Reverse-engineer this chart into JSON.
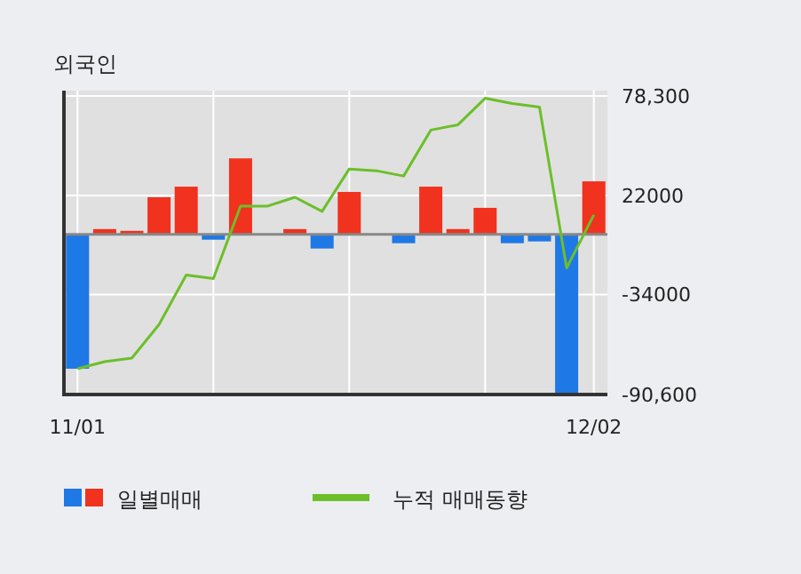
{
  "chart_data": {
    "type": "bar",
    "title": "외국인",
    "categories": [
      "11/01",
      null,
      null,
      null,
      null,
      null,
      null,
      null,
      null,
      null,
      null,
      null,
      null,
      null,
      null,
      null,
      null,
      null,
      null,
      "12/02"
    ],
    "series": [
      {
        "name": "일별매매",
        "colors": [
          "#1e78e6",
          "#f0321e",
          "#f0321e",
          "#f0321e",
          "#f0321e",
          "#1e78e6",
          "#f0321e",
          "#f0321e",
          "#f0321e",
          "#1e78e6",
          "#f0321e",
          "#f0321e",
          "#1e78e6",
          "#f0321e",
          "#f0321e",
          "#f0321e",
          "#1e78e6",
          "#1e78e6",
          "#1e78e6",
          "#f0321e"
        ],
        "values": [
          -76000,
          3000,
          2000,
          21000,
          27000,
          -3000,
          43000,
          0,
          3000,
          -8000,
          24000,
          0,
          -5000,
          27000,
          3000,
          15000,
          -5000,
          -4000,
          -90600,
          30000
        ]
      },
      {
        "name": "누적 매매동향",
        "type": "line",
        "color": "#6cbf2a",
        "values": [
          -76000,
          -72000,
          -70000,
          -51000,
          -23000,
          -25000,
          16000,
          16000,
          21000,
          13000,
          37000,
          36000,
          33000,
          59000,
          62000,
          77000,
          74000,
          72000,
          -19000,
          11000
        ]
      }
    ],
    "ylim": [
      -90600,
      78300
    ],
    "yticks": [
      {
        "value": 78300,
        "label": "78,300"
      },
      22000,
      -34000,
      {
        "value": -90600,
        "label": "-90,600"
      }
    ],
    "grid": true,
    "legend": "bottom"
  }
}
